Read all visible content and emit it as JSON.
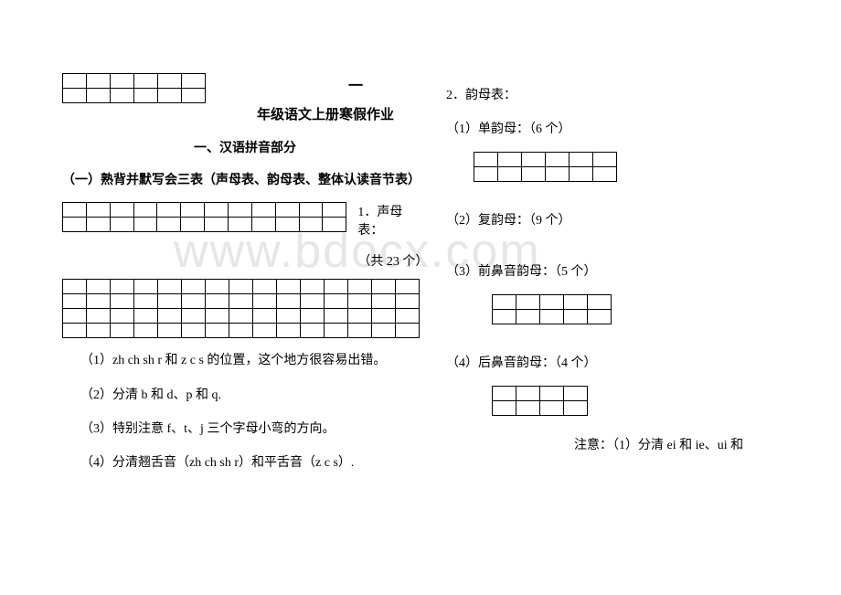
{
  "watermark": "www.bdocx.com",
  "left": {
    "big_one": "一",
    "title": "年级语文上册寒假作业",
    "section1": "一、汉语拼音部分",
    "section1_1": "（一）熟背并默写会三表（声母表、韵母表、整体认读音节表）",
    "shengmu_label": "1．声母表：",
    "shengmu_count": "（共 23 个）",
    "note1": "（1）zh ch sh r 和 z c s 的位置，这个地方很容易出错。",
    "note2": "（2）分清 b 和 d、p 和 q.",
    "note3": "（3）特别注意 f、t、j 三个字母小弯的方向。",
    "note4": "（4）分清翘舌音（zh ch sh r）和平舌音（z c s）."
  },
  "right": {
    "yunmu_label": "2．韵母表：",
    "dan_yunmu": "（1）单韵母：（6 个）",
    "fu_yunmu": "（2）复韵母：（9 个）",
    "qianbi_yunmu": "（3）前鼻音韵母：（5 个）",
    "houbi_yunmu": "（4）后鼻音韵母：（4 个）",
    "yunmu_note": "注意：（1）分清 ei 和 ie、ui 和"
  },
  "grids": {
    "title_grid": {
      "rows": 2,
      "cols": 6
    },
    "shengmu_grid1": {
      "rows": 2,
      "cols": 12
    },
    "shengmu_grid2": {
      "rows": 4,
      "cols": 15
    },
    "dan_grid": {
      "rows": 2,
      "cols": 6
    },
    "qianbi_grid": {
      "rows": 2,
      "cols": 5
    },
    "houbi_grid": {
      "rows": 2,
      "cols": 4
    }
  }
}
